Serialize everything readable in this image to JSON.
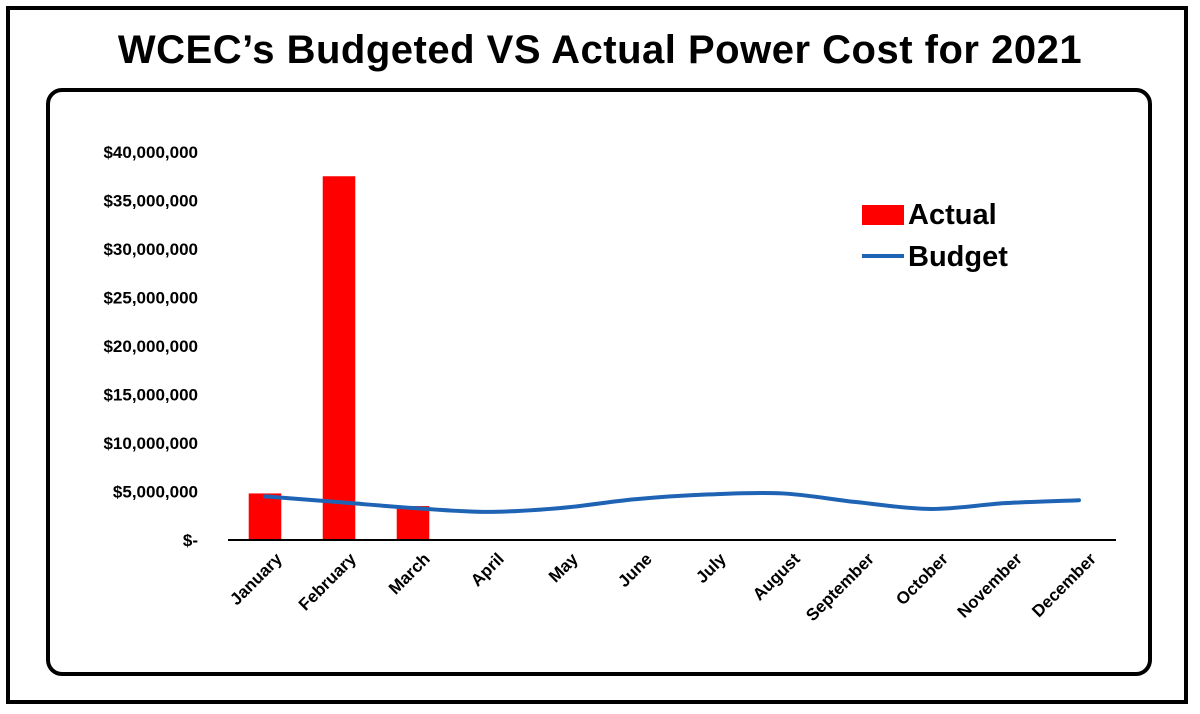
{
  "chart_data": {
    "type": "bar",
    "title": "WCEC’s Budgeted VS Actual Power Cost for 2021",
    "xlabel": "",
    "ylabel": "",
    "ylim": [
      0,
      40000000
    ],
    "categories": [
      "January",
      "February",
      "March",
      "April",
      "May",
      "June",
      "July",
      "August",
      "September",
      "October",
      "November",
      "December"
    ],
    "y_ticks": [
      {
        "value": 0,
        "label": "$-"
      },
      {
        "value": 5000000,
        "label": "$5,000,000"
      },
      {
        "value": 10000000,
        "label": "$10,000,000"
      },
      {
        "value": 15000000,
        "label": "$15,000,000"
      },
      {
        "value": 20000000,
        "label": "$20,000,000"
      },
      {
        "value": 25000000,
        "label": "$25,000,000"
      },
      {
        "value": 30000000,
        "label": "$30,000,000"
      },
      {
        "value": 35000000,
        "label": "$35,000,000"
      },
      {
        "value": 40000000,
        "label": "$40,000,000"
      }
    ],
    "series": [
      {
        "name": "Actual",
        "kind": "bar",
        "color": "#ff0000",
        "values": [
          4800000,
          37500000,
          3500000,
          null,
          null,
          null,
          null,
          null,
          null,
          null,
          null,
          null
        ]
      },
      {
        "name": "Budget",
        "kind": "line",
        "color": "#1f64b4",
        "values": [
          4500000,
          3900000,
          3300000,
          2900000,
          3300000,
          4200000,
          4700000,
          4800000,
          3900000,
          3200000,
          3800000,
          4100000
        ]
      }
    ],
    "legend_position": "top-right",
    "grid": false
  }
}
